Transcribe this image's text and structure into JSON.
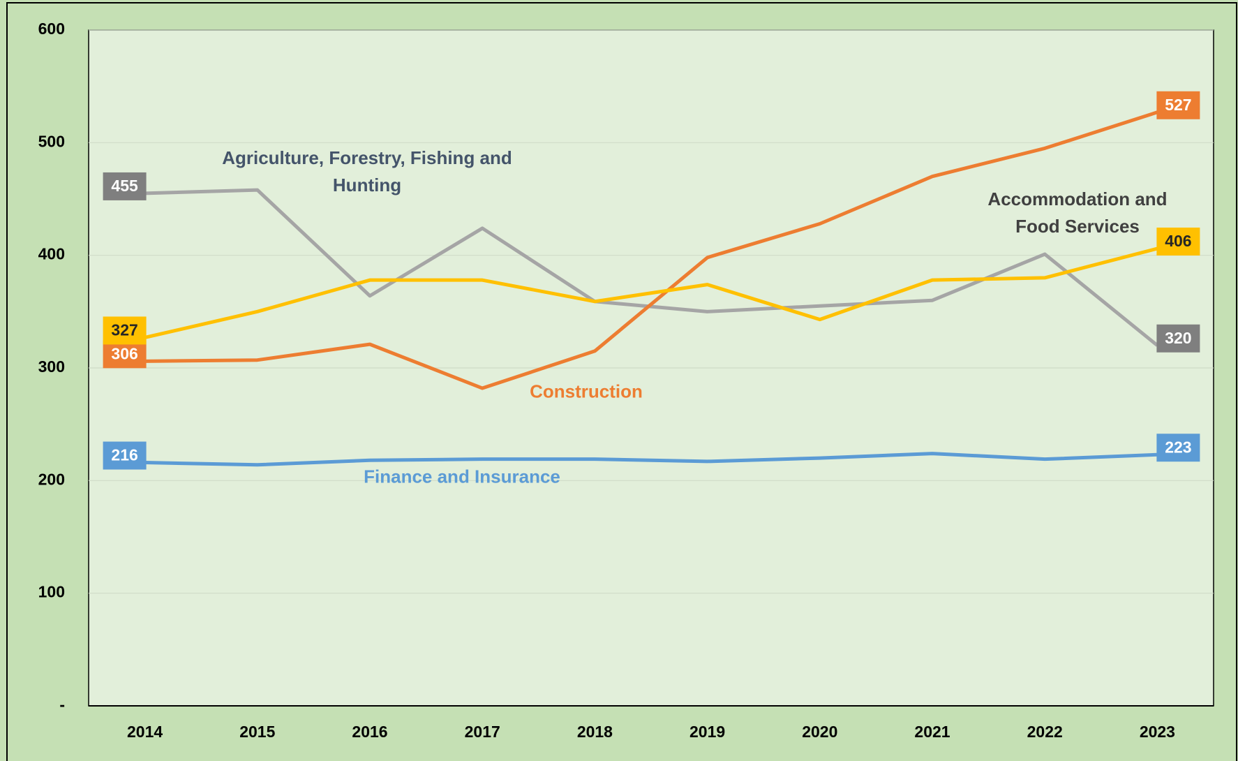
{
  "chart_data": {
    "type": "line",
    "categories": [
      "2014",
      "2015",
      "2016",
      "2017",
      "2018",
      "2019",
      "2020",
      "2021",
      "2022",
      "2023"
    ],
    "series": [
      {
        "name": "Agriculture, Forestry, Fishing and Hunting",
        "color": "#a5a5a5",
        "label_color": "#7f7f7f",
        "text_color": "#44546a",
        "values": [
          455,
          458,
          364,
          424,
          359,
          350,
          355,
          360,
          401,
          320
        ]
      },
      {
        "name": "Construction",
        "color": "#ed7d31",
        "label_color": "#ed7d31",
        "text_color": "#ed7d31",
        "values": [
          306,
          307,
          321,
          282,
          315,
          398,
          428,
          470,
          495,
          527
        ]
      },
      {
        "name": "Accommodation and Food Services",
        "color": "#ffc000",
        "label_color": "#ffc000",
        "text_color": "#404040",
        "values": [
          327,
          350,
          378,
          378,
          359,
          374,
          343,
          378,
          380,
          406
        ]
      },
      {
        "name": "Finance and Insurance",
        "color": "#5b9bd5",
        "label_color": "#5b9bd5",
        "text_color": "#5b9bd5",
        "values": [
          216,
          214,
          218,
          219,
          219,
          217,
          220,
          224,
          219,
          223
        ]
      }
    ],
    "ylim": [
      0,
      600
    ],
    "yticks": [
      {
        "value": 0,
        "label": "-"
      },
      100,
      200,
      300,
      400,
      500,
      600
    ],
    "grid": true
  }
}
